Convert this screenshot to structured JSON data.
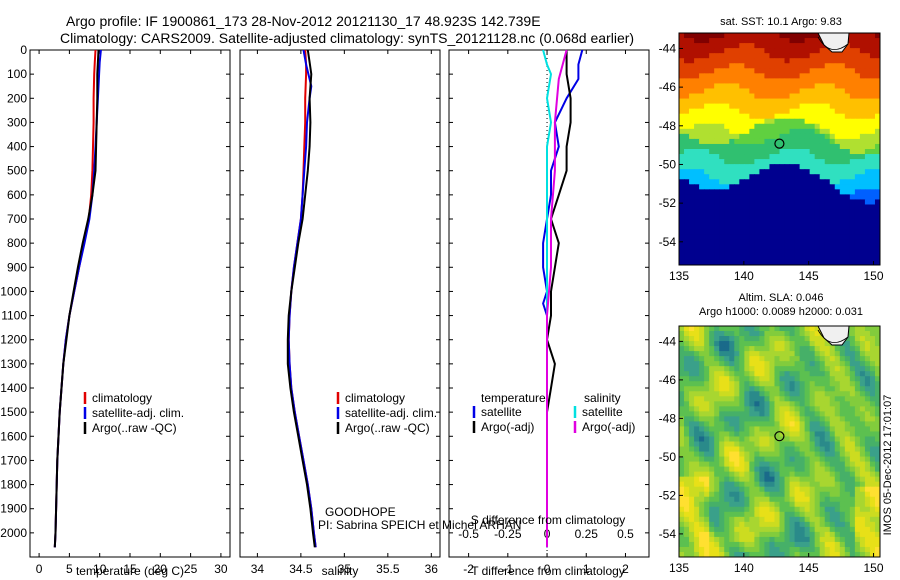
{
  "header": {
    "line1": "Argo profile: IF 1900861_173 28-Nov-2012 20121130_17 48.923S 142.739E",
    "line2": "Climatology: CARS2009. Satellite-adjusted climatology: synTS_20121128.nc (0.068d earlier)"
  },
  "colors": {
    "climatology": "#e00000",
    "satellite": "#0000e6",
    "argo": "#000000",
    "salinity_satellite": "#00e0e0",
    "salinity_argo": "#e000e0",
    "marker": "#000000"
  },
  "chart_data": [
    {
      "id": "temperature",
      "type": "line",
      "xlabel": "temperature (deg C)",
      "ylabel": "",
      "xlim": [
        -1.5,
        31.5
      ],
      "ylim": [
        2100,
        0
      ],
      "xticks": [
        0,
        5,
        10,
        15,
        20,
        25,
        30
      ],
      "yticks": [
        0,
        100,
        200,
        300,
        400,
        500,
        600,
        700,
        800,
        900,
        1000,
        1100,
        1200,
        1300,
        1400,
        1500,
        1600,
        1700,
        1800,
        1900,
        2000
      ],
      "legend": [
        "climatology",
        "satellite-adj. clim.",
        "Argo(..raw -QC)"
      ],
      "series": [
        {
          "name": "climatology",
          "color": "red",
          "points": [
            [
              9.3,
              0
            ],
            [
              9.2,
              50
            ],
            [
              9.1,
              100
            ],
            [
              9.0,
              200
            ],
            [
              9.0,
              300
            ],
            [
              8.9,
              400
            ],
            [
              8.8,
              500
            ],
            [
              8.6,
              600
            ],
            [
              8.2,
              700
            ],
            [
              7.4,
              800
            ],
            [
              6.6,
              900
            ],
            [
              5.8,
              1000
            ],
            [
              5.0,
              1100
            ],
            [
              4.4,
              1200
            ],
            [
              4.0,
              1300
            ],
            [
              3.7,
              1400
            ],
            [
              3.4,
              1500
            ],
            [
              3.2,
              1600
            ],
            [
              3.0,
              1700
            ],
            [
              2.9,
              1800
            ],
            [
              2.8,
              1900
            ],
            [
              2.7,
              2000
            ],
            [
              2.6,
              2060
            ]
          ]
        },
        {
          "name": "satellite-adj. clim.",
          "color": "blue",
          "points": [
            [
              10.2,
              0
            ],
            [
              10.0,
              50
            ],
            [
              9.9,
              100
            ],
            [
              9.7,
              200
            ],
            [
              9.5,
              300
            ],
            [
              9.3,
              400
            ],
            [
              9.1,
              500
            ],
            [
              8.8,
              600
            ],
            [
              8.3,
              700
            ],
            [
              7.5,
              800
            ],
            [
              6.6,
              900
            ],
            [
              5.8,
              1000
            ],
            [
              5.0,
              1100
            ],
            [
              4.4,
              1200
            ],
            [
              4.0,
              1300
            ],
            [
              3.7,
              1400
            ],
            [
              3.4,
              1500
            ],
            [
              3.2,
              1600
            ],
            [
              3.0,
              1700
            ],
            [
              2.9,
              1800
            ],
            [
              2.8,
              1900
            ],
            [
              2.7,
              2000
            ],
            [
              2.6,
              2060
            ]
          ]
        },
        {
          "name": "Argo(..raw -QC)",
          "color": "black",
          "points": [
            [
              9.8,
              0
            ],
            [
              9.7,
              50
            ],
            [
              9.6,
              100
            ],
            [
              9.6,
              200
            ],
            [
              9.5,
              300
            ],
            [
              9.4,
              400
            ],
            [
              9.3,
              500
            ],
            [
              8.8,
              600
            ],
            [
              8.1,
              700
            ],
            [
              7.2,
              800
            ],
            [
              6.4,
              900
            ],
            [
              5.7,
              1000
            ],
            [
              5.0,
              1100
            ],
            [
              4.5,
              1200
            ],
            [
              4.0,
              1300
            ],
            [
              3.7,
              1400
            ],
            [
              3.4,
              1500
            ],
            [
              3.2,
              1600
            ],
            [
              3.0,
              1700
            ],
            [
              2.9,
              1800
            ],
            [
              2.8,
              1900
            ],
            [
              2.7,
              2000
            ],
            [
              2.6,
              2060
            ]
          ]
        }
      ]
    },
    {
      "id": "salinity",
      "type": "line",
      "xlabel": "salinity",
      "xlim": [
        33.8,
        36.1
      ],
      "ylim": [
        2100,
        0
      ],
      "xticks": [
        34,
        34.5,
        35,
        35.5,
        36
      ],
      "yticks": [
        0,
        100,
        200,
        300,
        400,
        500,
        600,
        700,
        800,
        900,
        1000,
        1100,
        1200,
        1300,
        1400,
        1500,
        1600,
        1700,
        1800,
        1900,
        2000
      ],
      "legend": [
        "climatology",
        "satellite-adj. clim.",
        "Argo(..raw -QC)"
      ],
      "annotations": [
        "GOODHOPE",
        "PI: Sabrina SPEICH et Michel ARHAN"
      ],
      "series": [
        {
          "name": "climatology",
          "color": "red",
          "points": [
            [
              34.55,
              0
            ],
            [
              34.56,
              60
            ],
            [
              34.56,
              100
            ],
            [
              34.55,
              200
            ],
            [
              34.55,
              300
            ],
            [
              34.54,
              400
            ],
            [
              34.53,
              500
            ],
            [
              34.52,
              600
            ],
            [
              34.5,
              700
            ],
            [
              34.46,
              800
            ],
            [
              34.42,
              900
            ],
            [
              34.39,
              1000
            ],
            [
              34.37,
              1100
            ],
            [
              34.36,
              1200
            ],
            [
              34.37,
              1300
            ],
            [
              34.39,
              1400
            ],
            [
              34.43,
              1500
            ],
            [
              34.48,
              1600
            ],
            [
              34.53,
              1700
            ],
            [
              34.58,
              1800
            ],
            [
              34.62,
              1900
            ],
            [
              34.65,
              2000
            ],
            [
              34.67,
              2060
            ]
          ]
        },
        {
          "name": "satellite-adj. clim.",
          "color": "blue",
          "points": [
            [
              34.53,
              0
            ],
            [
              34.56,
              60
            ],
            [
              34.62,
              150
            ],
            [
              34.6,
              200
            ],
            [
              34.57,
              300
            ],
            [
              34.56,
              400
            ],
            [
              34.54,
              500
            ],
            [
              34.52,
              600
            ],
            [
              34.5,
              700
            ],
            [
              34.46,
              800
            ],
            [
              34.42,
              900
            ],
            [
              34.39,
              1000
            ],
            [
              34.37,
              1100
            ],
            [
              34.36,
              1200
            ],
            [
              34.37,
              1300
            ],
            [
              34.39,
              1400
            ],
            [
              34.43,
              1500
            ],
            [
              34.48,
              1600
            ],
            [
              34.53,
              1700
            ],
            [
              34.58,
              1800
            ],
            [
              34.62,
              1900
            ],
            [
              34.65,
              2000
            ],
            [
              34.67,
              2060
            ]
          ]
        },
        {
          "name": "Argo(..raw -QC)",
          "color": "black",
          "points": [
            [
              34.58,
              0
            ],
            [
              34.6,
              50
            ],
            [
              34.62,
              100
            ],
            [
              34.6,
              200
            ],
            [
              34.61,
              300
            ],
            [
              34.6,
              400
            ],
            [
              34.58,
              500
            ],
            [
              34.55,
              600
            ],
            [
              34.52,
              700
            ],
            [
              34.47,
              800
            ],
            [
              34.43,
              900
            ],
            [
              34.39,
              1000
            ],
            [
              34.36,
              1100
            ],
            [
              34.35,
              1200
            ],
            [
              34.35,
              1300
            ],
            [
              34.38,
              1400
            ],
            [
              34.42,
              1500
            ],
            [
              34.47,
              1600
            ],
            [
              34.52,
              1700
            ],
            [
              34.57,
              1800
            ],
            [
              34.61,
              1900
            ],
            [
              34.64,
              2000
            ],
            [
              34.66,
              2060
            ]
          ]
        }
      ]
    },
    {
      "id": "difference",
      "type": "line",
      "xlabel": "T difference from climatology",
      "xlabel_top": "S difference from climatology",
      "xlim": [
        -2.5,
        2.6
      ],
      "ylim": [
        2100,
        0
      ],
      "xticks": [
        -2,
        -1,
        0,
        1,
        2
      ],
      "xticks_top": [
        -0.5,
        -0.25,
        0,
        0.25,
        0.5
      ],
      "yticks": [
        0,
        100,
        200,
        300,
        400,
        500,
        600,
        700,
        800,
        900,
        1000,
        1100,
        1200,
        1300,
        1400,
        1500,
        1600,
        1700,
        1800,
        1900,
        2000
      ],
      "legend_titles": [
        "temperature",
        "salinity"
      ],
      "legend": [
        "satellite",
        "Argo(-adj)",
        "satellite",
        "Argo(-adj)"
      ],
      "series": [
        {
          "name": "satellite",
          "group": "temperature",
          "color": "blue",
          "points": [
            [
              0.9,
              0
            ],
            [
              0.8,
              60
            ],
            [
              0.8,
              120
            ],
            [
              0.5,
              200
            ],
            [
              0.2,
              300
            ],
            [
              0.3,
              400
            ],
            [
              0.1,
              500
            ],
            [
              0.1,
              600
            ],
            [
              0.0,
              700
            ],
            [
              -0.1,
              800
            ],
            [
              -0.1,
              900
            ],
            [
              0.0,
              1000
            ],
            [
              -0.1,
              1050
            ],
            [
              0.0,
              1100
            ],
            [
              0.0,
              1200
            ],
            [
              0.0,
              1300
            ],
            [
              0.0,
              1400
            ],
            [
              0.0,
              1600
            ],
            [
              0.0,
              2060
            ]
          ]
        },
        {
          "name": "Argo(-adj)",
          "group": "temperature",
          "color": "black",
          "points": [
            [
              0.5,
              0
            ],
            [
              0.5,
              60
            ],
            [
              0.5,
              100
            ],
            [
              0.6,
              200
            ],
            [
              0.6,
              300
            ],
            [
              0.5,
              400
            ],
            [
              0.5,
              500
            ],
            [
              0.3,
              600
            ],
            [
              0.1,
              700
            ],
            [
              0.3,
              800
            ],
            [
              0.2,
              900
            ],
            [
              0.1,
              1000
            ],
            [
              0.1,
              1100
            ],
            [
              0.0,
              1200
            ],
            [
              0.2,
              1300
            ],
            [
              0.1,
              1400
            ],
            [
              0.0,
              1500
            ],
            [
              0.0,
              1600
            ],
            [
              0.0,
              2060
            ]
          ]
        },
        {
          "name": "satellite",
          "group": "salinity",
          "color": "cyan",
          "points": [
            [
              -0.1,
              0
            ],
            [
              0.0,
              60
            ],
            [
              0.1,
              100
            ],
            [
              0.0,
              200
            ],
            [
              0.1,
              300
            ],
            [
              0.0,
              400
            ],
            [
              0.0,
              500
            ],
            [
              0.0,
              600
            ],
            [
              0.0,
              700
            ],
            [
              0.0,
              800
            ],
            [
              0.0,
              900
            ],
            [
              0.0,
              1000
            ],
            [
              0.0,
              1100
            ],
            [
              0.0,
              1200
            ],
            [
              0.0,
              1400
            ],
            [
              0.0,
              1600
            ],
            [
              0.0,
              2060
            ]
          ]
        },
        {
          "name": "Argo(-adj)",
          "group": "salinity",
          "color": "magenta",
          "points": [
            [
              0.5,
              0
            ],
            [
              0.4,
              60
            ],
            [
              0.3,
              120
            ],
            [
              0.2,
              300
            ],
            [
              0.2,
              500
            ],
            [
              0.1,
              700
            ],
            [
              0.1,
              900
            ],
            [
              0.0,
              1100
            ],
            [
              0.0,
              1300
            ],
            [
              0.0,
              1500
            ],
            [
              0.0,
              1600
            ],
            [
              0.0,
              2060
            ]
          ]
        }
      ]
    },
    {
      "id": "sst-map",
      "type": "heatmap",
      "title": "sat. SST: 10.1  Argo: 9.83",
      "xlim": [
        135,
        150.5
      ],
      "ylim": [
        -55.2,
        -43.2
      ],
      "xticks": [
        135,
        140,
        145,
        150
      ],
      "yticks": [
        -44,
        -46,
        -48,
        -50,
        -52,
        -54
      ],
      "marker": [
        142.739,
        -48.923
      ]
    },
    {
      "id": "sla-map",
      "type": "heatmap",
      "title": "Altim. SLA: 0.046",
      "subtitle": "Argo h1000: 0.0089 h2000: 0.031",
      "xlim": [
        135,
        150.5
      ],
      "ylim": [
        -55.2,
        -43.2
      ],
      "xticks": [
        135,
        140,
        145,
        150
      ],
      "yticks": [
        -44,
        -46,
        -48,
        -50,
        -52,
        -54
      ],
      "marker": [
        142.739,
        -48.923
      ],
      "side_label": "IMOS 05-Dec-2012 17:01:07"
    }
  ]
}
